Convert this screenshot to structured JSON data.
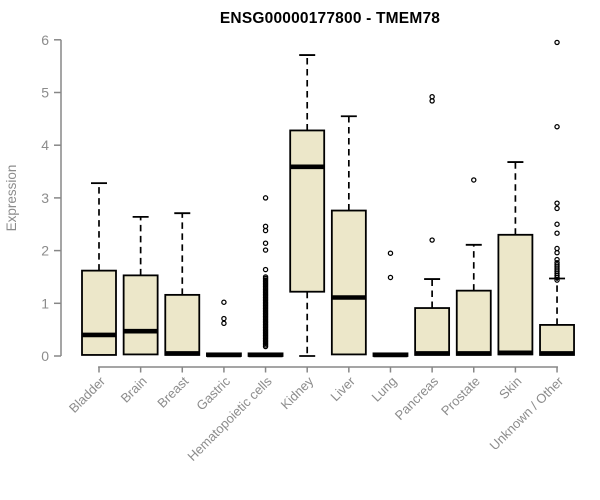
{
  "chart_data": {
    "type": "boxplot",
    "title": "ENSG00000177800 - TMEM78",
    "ylabel": "Expression",
    "ylim": [
      0,
      6
    ],
    "yticks": [
      0,
      1,
      2,
      3,
      4,
      5,
      6
    ],
    "categories": [
      "Bladder",
      "Brain",
      "Breast",
      "Gastric",
      "Hematopoietic cells",
      "Kidney",
      "Liver",
      "Lung",
      "Pancreas",
      "Prostate",
      "Skin",
      "Unknown / Other"
    ],
    "layout": {
      "grid": false,
      "legend": null,
      "x_label_rotation": 45
    },
    "boxes": [
      {
        "category": "Bladder",
        "low": null,
        "q1": 0.02,
        "median": 0.4,
        "q3": 1.62,
        "high": 3.28,
        "outliers": []
      },
      {
        "category": "Brain",
        "low": null,
        "q1": 0.03,
        "median": 0.47,
        "q3": 1.53,
        "high": 2.64,
        "outliers": []
      },
      {
        "category": "Breast",
        "low": null,
        "q1": 0.02,
        "median": 0.05,
        "q3": 1.16,
        "high": 2.71,
        "outliers": []
      },
      {
        "category": "Gastric",
        "low": null,
        "q1": 0.0,
        "median": 0.02,
        "q3": 0.05,
        "high": null,
        "outliers": [
          1.02,
          0.71,
          0.62
        ]
      },
      {
        "category": "Hematopoietic cells",
        "low": null,
        "q1": 0.0,
        "median": 0.02,
        "q3": 0.05,
        "high": null,
        "outliers": [
          3.0,
          2.46,
          2.38,
          2.14,
          2.01,
          1.64,
          1.5,
          1.47,
          1.44,
          1.41,
          1.38,
          1.35,
          1.32,
          1.29,
          1.26,
          1.23,
          1.2,
          1.17,
          1.14,
          1.11,
          1.08,
          1.05,
          1.02,
          0.99,
          0.96,
          0.93,
          0.9,
          0.87,
          0.84,
          0.81,
          0.78,
          0.75,
          0.72,
          0.69,
          0.66,
          0.63,
          0.6,
          0.57,
          0.54,
          0.51,
          0.48,
          0.45,
          0.42,
          0.39,
          0.36,
          0.33,
          0.3,
          0.27,
          0.24,
          0.21,
          0.18
        ]
      },
      {
        "category": "Kidney",
        "low": 0.0,
        "q1": 1.22,
        "median": 3.59,
        "q3": 4.28,
        "high": 5.71,
        "outliers": []
      },
      {
        "category": "Liver",
        "low": null,
        "q1": 0.03,
        "median": 1.11,
        "q3": 2.76,
        "high": 4.55,
        "outliers": []
      },
      {
        "category": "Lung",
        "low": null,
        "q1": 0.0,
        "median": 0.02,
        "q3": 0.05,
        "high": null,
        "outliers": [
          1.95,
          1.49
        ]
      },
      {
        "category": "Pancreas",
        "low": null,
        "q1": 0.02,
        "median": 0.05,
        "q3": 0.91,
        "high": 1.46,
        "outliers": [
          4.92,
          4.84,
          2.2
        ]
      },
      {
        "category": "Prostate",
        "low": null,
        "q1": 0.02,
        "median": 0.05,
        "q3": 1.24,
        "high": 2.11,
        "outliers": [
          3.34
        ]
      },
      {
        "category": "Skin",
        "low": null,
        "q1": 0.03,
        "median": 0.06,
        "q3": 2.3,
        "high": 3.68,
        "outliers": []
      },
      {
        "category": "Unknown / Other",
        "low": null,
        "q1": 0.02,
        "median": 0.05,
        "q3": 0.59,
        "high": 1.47,
        "outliers": [
          5.95,
          4.35,
          2.9,
          2.8,
          2.5,
          2.33,
          2.04,
          1.96,
          1.83,
          1.77,
          1.73,
          1.69,
          1.65,
          1.61,
          1.57,
          1.53,
          1.49,
          1.44
        ]
      }
    ]
  },
  "colors": {
    "background": "#ffffff",
    "box_fill": "#ece7c9",
    "box_border": "#000000",
    "median": "#000000",
    "whisker": "#000000",
    "outlier": "#000000",
    "axis": "#878787",
    "tick_label": "#8c8c8c",
    "axis_label": "#8c8c8c",
    "title": "#000000"
  }
}
